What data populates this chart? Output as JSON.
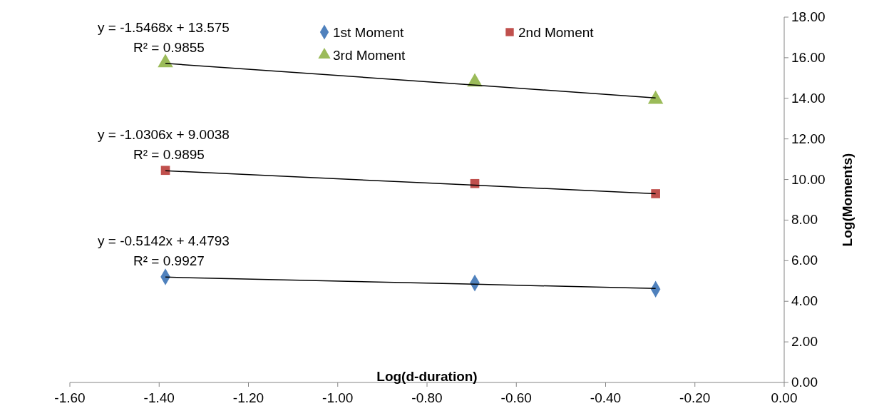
{
  "chart_data": {
    "type": "scatter",
    "xlabel": "Log(d-duration)",
    "ylabel": "Log(Moments)",
    "xlim": [
      -1.6,
      0
    ],
    "xticks": [
      {
        "value": -1.6,
        "label": "-1.60"
      },
      {
        "value": -1.4,
        "label": "-1.40"
      },
      {
        "value": -1.2,
        "label": "-1.20"
      },
      {
        "value": -1.0,
        "label": "-1.00"
      },
      {
        "value": -0.8,
        "label": "-0.80"
      },
      {
        "value": -0.6,
        "label": "-0.60"
      },
      {
        "value": -0.4,
        "label": "-0.40"
      },
      {
        "value": -0.2,
        "label": "-0.20"
      },
      {
        "value": 0,
        "label": "0.00"
      }
    ],
    "ylim": [
      0,
      18
    ],
    "yticks": [
      {
        "value": 0,
        "label": "0.00"
      },
      {
        "value": 2,
        "label": "2.00"
      },
      {
        "value": 4,
        "label": "4.00"
      },
      {
        "value": 6,
        "label": "6.00"
      },
      {
        "value": 8,
        "label": "8.00"
      },
      {
        "value": 10,
        "label": "10.00"
      },
      {
        "value": 12,
        "label": "12.00"
      },
      {
        "value": 14,
        "label": "14.00"
      },
      {
        "value": 16,
        "label": "16.00"
      },
      {
        "value": 18,
        "label": "18.00"
      }
    ],
    "grid": false,
    "legend": "top",
    "x": [
      -1.386,
      -0.693,
      -0.288
    ],
    "series": [
      {
        "name": "1st Moment",
        "color": "#4f81bd",
        "marker": "diamond",
        "values": [
          5.2,
          4.9,
          4.6
        ]
      },
      {
        "name": "2nd Moment",
        "color": "#c0504d",
        "marker": "square",
        "values": [
          10.45,
          9.8,
          9.3
        ]
      },
      {
        "name": "3rd Moment",
        "color": "#9bbb59",
        "marker": "triangle",
        "values": [
          15.75,
          14.8,
          13.95
        ]
      },
      {
        "type": "line",
        "color": "#000000",
        "values": [
          5.19,
          4.84,
          4.63
        ]
      },
      {
        "type": "line",
        "color": "#000000",
        "values": [
          10.43,
          9.72,
          9.3
        ]
      },
      {
        "type": "line",
        "color": "#000000",
        "values": [
          15.72,
          14.65,
          14.02
        ]
      }
    ],
    "annotations": [
      "y = -0.5142x + 4.4793",
      "R² = 0.9927",
      "y = -1.0306x + 9.0038",
      "R² = 0.9895",
      "y = -1.5468x + 13.575",
      "R² = 0.9855"
    ]
  }
}
